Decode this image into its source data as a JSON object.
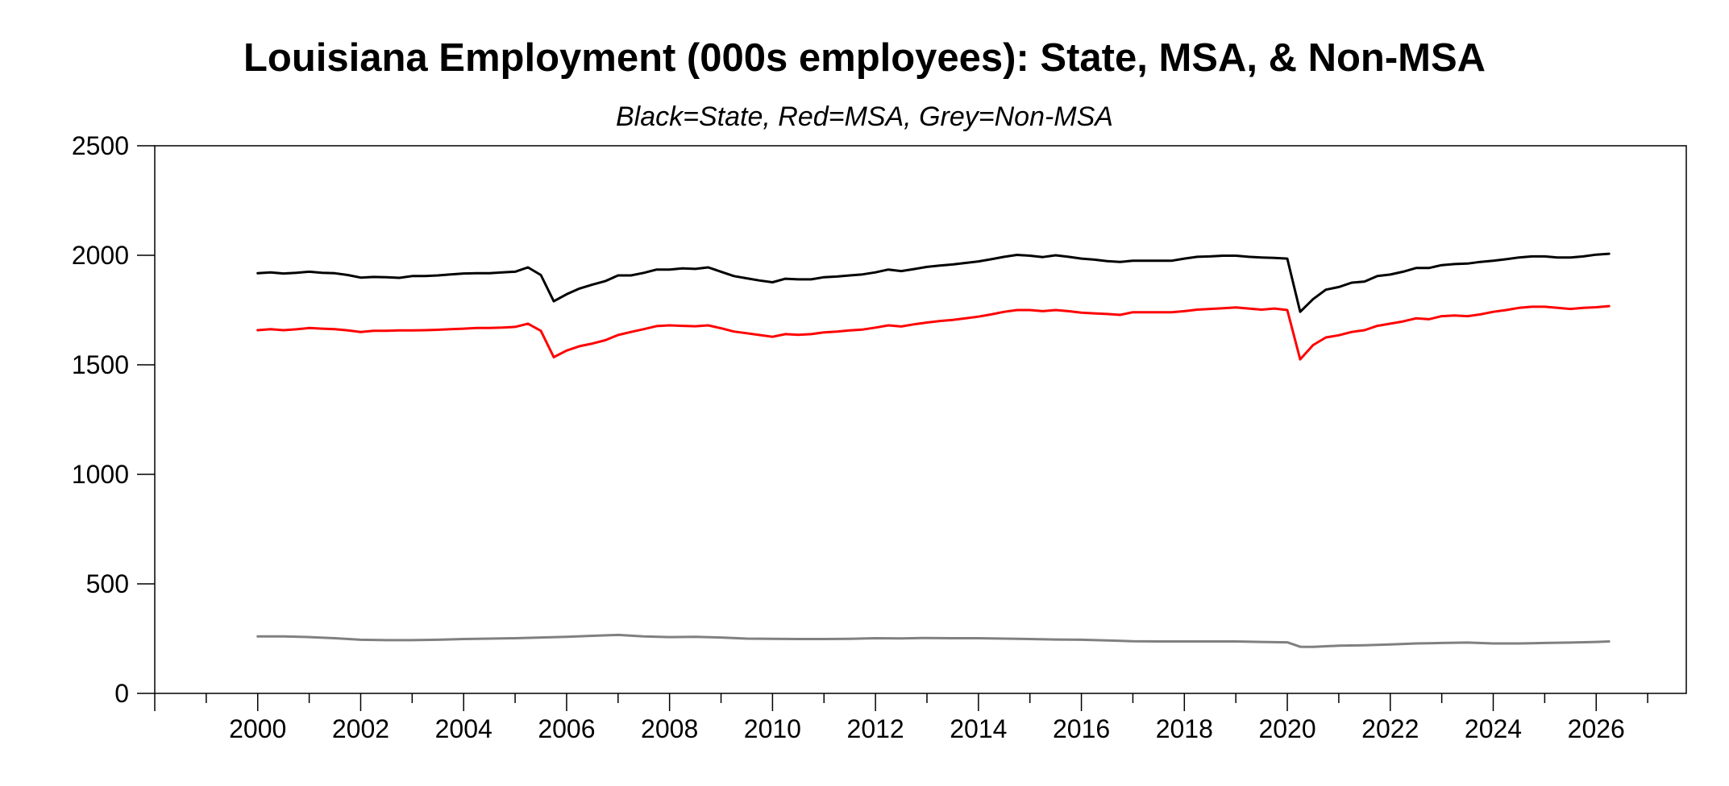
{
  "chart_data": {
    "type": "line",
    "title": "Louisiana Employment (000s employees): State, MSA, & Non-MSA",
    "subtitle": "Black=State, Red=MSA, Grey=Non-MSA",
    "xlabel": "",
    "ylabel": "",
    "xlim": [
      1998.0,
      2027.75
    ],
    "ylim": [
      0,
      2500
    ],
    "y_ticks": [
      0,
      500,
      1000,
      1500,
      2000,
      2500
    ],
    "x_ticks": [
      2000,
      2002,
      2004,
      2006,
      2008,
      2010,
      2012,
      2014,
      2016,
      2018,
      2020,
      2022,
      2024,
      2026
    ],
    "grid": false,
    "legend": "none",
    "series": [
      {
        "color": "#000000",
        "points": [
          [
            2000.0,
            1918
          ],
          [
            2000.25,
            1922
          ],
          [
            2000.5,
            1917
          ],
          [
            2000.75,
            1920
          ],
          [
            2001.0,
            1925
          ],
          [
            2001.25,
            1920
          ],
          [
            2001.5,
            1918
          ],
          [
            2001.75,
            1910
          ],
          [
            2002.0,
            1898
          ],
          [
            2002.25,
            1901
          ],
          [
            2002.5,
            1900
          ],
          [
            2002.75,
            1897
          ],
          [
            2003.0,
            1905
          ],
          [
            2003.25,
            1905
          ],
          [
            2003.5,
            1908
          ],
          [
            2003.75,
            1913
          ],
          [
            2004.0,
            1917
          ],
          [
            2004.25,
            1918
          ],
          [
            2004.5,
            1918
          ],
          [
            2004.75,
            1922
          ],
          [
            2005.0,
            1925
          ],
          [
            2005.25,
            1945
          ],
          [
            2005.5,
            1910
          ],
          [
            2005.75,
            1790
          ],
          [
            2006.0,
            1822
          ],
          [
            2006.25,
            1848
          ],
          [
            2006.5,
            1866
          ],
          [
            2006.75,
            1882
          ],
          [
            2007.0,
            1908
          ],
          [
            2007.25,
            1908
          ],
          [
            2007.5,
            1920
          ],
          [
            2007.75,
            1935
          ],
          [
            2008.0,
            1935
          ],
          [
            2008.25,
            1940
          ],
          [
            2008.5,
            1938
          ],
          [
            2008.75,
            1945
          ],
          [
            2009.0,
            1925
          ],
          [
            2009.25,
            1905
          ],
          [
            2009.5,
            1895
          ],
          [
            2009.75,
            1885
          ],
          [
            2010.0,
            1877
          ],
          [
            2010.25,
            1893
          ],
          [
            2010.5,
            1890
          ],
          [
            2010.75,
            1890
          ],
          [
            2011.0,
            1900
          ],
          [
            2011.25,
            1903
          ],
          [
            2011.5,
            1908
          ],
          [
            2011.75,
            1913
          ],
          [
            2012.0,
            1922
          ],
          [
            2012.25,
            1935
          ],
          [
            2012.5,
            1928
          ],
          [
            2012.75,
            1937
          ],
          [
            2013.0,
            1947
          ],
          [
            2013.25,
            1953
          ],
          [
            2013.5,
            1958
          ],
          [
            2013.75,
            1965
          ],
          [
            2014.0,
            1972
          ],
          [
            2014.25,
            1982
          ],
          [
            2014.5,
            1993
          ],
          [
            2014.75,
            2002
          ],
          [
            2015.0,
            1998
          ],
          [
            2015.25,
            1992
          ],
          [
            2015.5,
            2000
          ],
          [
            2015.75,
            1993
          ],
          [
            2016.0,
            1985
          ],
          [
            2016.25,
            1980
          ],
          [
            2016.5,
            1973
          ],
          [
            2016.75,
            1970
          ],
          [
            2017.0,
            1975
          ],
          [
            2017.25,
            1975
          ],
          [
            2017.5,
            1975
          ],
          [
            2017.75,
            1975
          ],
          [
            2018.0,
            1985
          ],
          [
            2018.25,
            1993
          ],
          [
            2018.5,
            1995
          ],
          [
            2018.75,
            1998
          ],
          [
            2019.0,
            1998
          ],
          [
            2019.25,
            1993
          ],
          [
            2019.5,
            1990
          ],
          [
            2019.75,
            1988
          ],
          [
            2020.0,
            1985
          ],
          [
            2020.25,
            1742
          ],
          [
            2020.5,
            1800
          ],
          [
            2020.75,
            1843
          ],
          [
            2021.0,
            1855
          ],
          [
            2021.25,
            1875
          ],
          [
            2021.5,
            1880
          ],
          [
            2021.75,
            1905
          ],
          [
            2022.0,
            1912
          ],
          [
            2022.25,
            1925
          ],
          [
            2022.5,
            1942
          ],
          [
            2022.75,
            1942
          ],
          [
            2023.0,
            1955
          ],
          [
            2023.25,
            1960
          ],
          [
            2023.5,
            1962
          ],
          [
            2023.75,
            1970
          ],
          [
            2024.0,
            1975
          ],
          [
            2024.25,
            1982
          ],
          [
            2024.5,
            1990
          ],
          [
            2024.75,
            1995
          ],
          [
            2025.0,
            1995
          ],
          [
            2025.25,
            1990
          ],
          [
            2025.5,
            1990
          ],
          [
            2025.75,
            1995
          ],
          [
            2026.0,
            2003
          ],
          [
            2026.25,
            2007
          ]
        ]
      },
      {
        "color": "#ff0000",
        "points": [
          [
            2000.0,
            1658
          ],
          [
            2000.25,
            1663
          ],
          [
            2000.5,
            1658
          ],
          [
            2000.75,
            1662
          ],
          [
            2001.0,
            1668
          ],
          [
            2001.25,
            1665
          ],
          [
            2001.5,
            1663
          ],
          [
            2001.75,
            1657
          ],
          [
            2002.0,
            1650
          ],
          [
            2002.25,
            1655
          ],
          [
            2002.5,
            1655
          ],
          [
            2002.75,
            1657
          ],
          [
            2003.0,
            1657
          ],
          [
            2003.25,
            1658
          ],
          [
            2003.5,
            1660
          ],
          [
            2003.75,
            1663
          ],
          [
            2004.0,
            1665
          ],
          [
            2004.25,
            1668
          ],
          [
            2004.5,
            1668
          ],
          [
            2004.75,
            1670
          ],
          [
            2005.0,
            1673
          ],
          [
            2005.25,
            1688
          ],
          [
            2005.5,
            1655
          ],
          [
            2005.75,
            1535
          ],
          [
            2006.0,
            1565
          ],
          [
            2006.25,
            1585
          ],
          [
            2006.5,
            1597
          ],
          [
            2006.75,
            1612
          ],
          [
            2007.0,
            1636
          ],
          [
            2007.25,
            1650
          ],
          [
            2007.5,
            1663
          ],
          [
            2007.75,
            1677
          ],
          [
            2008.0,
            1680
          ],
          [
            2008.25,
            1678
          ],
          [
            2008.5,
            1676
          ],
          [
            2008.75,
            1680
          ],
          [
            2009.0,
            1667
          ],
          [
            2009.25,
            1652
          ],
          [
            2009.5,
            1644
          ],
          [
            2009.75,
            1636
          ],
          [
            2010.0,
            1628
          ],
          [
            2010.25,
            1640
          ],
          [
            2010.5,
            1637
          ],
          [
            2010.75,
            1640
          ],
          [
            2011.0,
            1648
          ],
          [
            2011.25,
            1652
          ],
          [
            2011.5,
            1657
          ],
          [
            2011.75,
            1661
          ],
          [
            2012.0,
            1670
          ],
          [
            2012.25,
            1680
          ],
          [
            2012.5,
            1675
          ],
          [
            2012.75,
            1685
          ],
          [
            2013.0,
            1693
          ],
          [
            2013.25,
            1700
          ],
          [
            2013.5,
            1705
          ],
          [
            2013.75,
            1712
          ],
          [
            2014.0,
            1720
          ],
          [
            2014.25,
            1730
          ],
          [
            2014.5,
            1742
          ],
          [
            2014.75,
            1750
          ],
          [
            2015.0,
            1750
          ],
          [
            2015.25,
            1745
          ],
          [
            2015.5,
            1750
          ],
          [
            2015.75,
            1745
          ],
          [
            2016.0,
            1738
          ],
          [
            2016.25,
            1735
          ],
          [
            2016.5,
            1732
          ],
          [
            2016.75,
            1728
          ],
          [
            2017.0,
            1740
          ],
          [
            2017.25,
            1740
          ],
          [
            2017.5,
            1740
          ],
          [
            2017.75,
            1740
          ],
          [
            2018.0,
            1745
          ],
          [
            2018.25,
            1752
          ],
          [
            2018.5,
            1755
          ],
          [
            2018.75,
            1758
          ],
          [
            2019.0,
            1762
          ],
          [
            2019.25,
            1757
          ],
          [
            2019.5,
            1752
          ],
          [
            2019.75,
            1757
          ],
          [
            2020.0,
            1750
          ],
          [
            2020.25,
            1525
          ],
          [
            2020.5,
            1590
          ],
          [
            2020.75,
            1625
          ],
          [
            2021.0,
            1635
          ],
          [
            2021.25,
            1650
          ],
          [
            2021.5,
            1658
          ],
          [
            2021.75,
            1678
          ],
          [
            2022.0,
            1688
          ],
          [
            2022.25,
            1698
          ],
          [
            2022.5,
            1712
          ],
          [
            2022.75,
            1708
          ],
          [
            2023.0,
            1722
          ],
          [
            2023.25,
            1725
          ],
          [
            2023.5,
            1722
          ],
          [
            2023.75,
            1730
          ],
          [
            2024.0,
            1742
          ],
          [
            2024.25,
            1750
          ],
          [
            2024.5,
            1760
          ],
          [
            2024.75,
            1765
          ],
          [
            2025.0,
            1765
          ],
          [
            2025.25,
            1760
          ],
          [
            2025.5,
            1755
          ],
          [
            2025.75,
            1760
          ],
          [
            2026.0,
            1763
          ],
          [
            2026.25,
            1768
          ]
        ]
      },
      {
        "color": "#808080",
        "points": [
          [
            2000.0,
            260
          ],
          [
            2000.5,
            260
          ],
          [
            2001.0,
            257
          ],
          [
            2001.5,
            252
          ],
          [
            2002.0,
            245
          ],
          [
            2002.5,
            243
          ],
          [
            2003.0,
            243
          ],
          [
            2003.5,
            245
          ],
          [
            2004.0,
            248
          ],
          [
            2004.5,
            250
          ],
          [
            2005.0,
            252
          ],
          [
            2005.5,
            255
          ],
          [
            2006.0,
            258
          ],
          [
            2006.5,
            263
          ],
          [
            2007.0,
            267
          ],
          [
            2007.5,
            260
          ],
          [
            2008.0,
            257
          ],
          [
            2008.5,
            258
          ],
          [
            2009.0,
            255
          ],
          [
            2009.5,
            250
          ],
          [
            2010.0,
            249
          ],
          [
            2010.5,
            248
          ],
          [
            2011.0,
            248
          ],
          [
            2011.5,
            249
          ],
          [
            2012.0,
            252
          ],
          [
            2012.5,
            251
          ],
          [
            2013.0,
            253
          ],
          [
            2013.5,
            252
          ],
          [
            2014.0,
            252
          ],
          [
            2014.5,
            250
          ],
          [
            2015.0,
            248
          ],
          [
            2015.5,
            246
          ],
          [
            2016.0,
            245
          ],
          [
            2016.5,
            242
          ],
          [
            2017.0,
            238
          ],
          [
            2017.5,
            237
          ],
          [
            2018.0,
            237
          ],
          [
            2018.5,
            237
          ],
          [
            2019.0,
            237
          ],
          [
            2019.5,
            235
          ],
          [
            2020.0,
            233
          ],
          [
            2020.25,
            213
          ],
          [
            2020.5,
            212
          ],
          [
            2021.0,
            218
          ],
          [
            2021.5,
            220
          ],
          [
            2022.0,
            223
          ],
          [
            2022.5,
            228
          ],
          [
            2023.0,
            230
          ],
          [
            2023.5,
            232
          ],
          [
            2024.0,
            228
          ],
          [
            2024.5,
            228
          ],
          [
            2025.0,
            230
          ],
          [
            2025.5,
            232
          ],
          [
            2026.0,
            235
          ],
          [
            2026.25,
            237
          ]
        ]
      }
    ]
  }
}
